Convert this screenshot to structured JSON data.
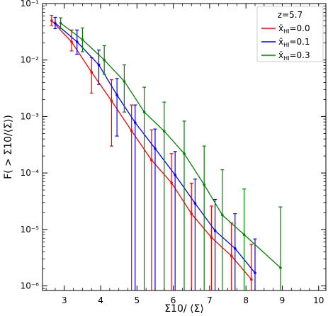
{
  "chart_data": {
    "type": "line",
    "xlabel": "Σ10/ ⟨Σ⟩",
    "ylabel": "F( > Σ10/⟨Σ⟩)",
    "xlim": [
      2.4,
      10.2
    ],
    "ylim": [
      8.3e-07,
      0.1
    ],
    "yscale": "log",
    "xticks": [
      3,
      4,
      5,
      6,
      7,
      8,
      9,
      10
    ],
    "ytick_labels": [
      "10⁻¹",
      "10⁻²",
      "10⁻³",
      "10⁻⁴",
      "10⁻⁵",
      "10⁻⁶"
    ],
    "legend": {
      "title": "z=5.7",
      "position": "top-right"
    },
    "series": [
      {
        "name": "x̄HI=0.0",
        "label_base": "x̄",
        "label_sub": "HI",
        "label_value": "=0.0",
        "color": "#ff0000",
        "x": [
          2.65,
          3.2,
          3.75,
          4.3,
          4.85,
          5.4,
          5.95,
          6.5,
          7.05,
          7.6,
          8.15
        ],
        "y": [
          0.05,
          0.021,
          0.0061,
          0.0019,
          0.00056,
          0.00017,
          6.7e-05,
          1.9e-05,
          7.2e-06,
          3.4e-06,
          1.3e-06
        ],
        "err_low": [
          0.041,
          0.0145,
          0.0026,
          0.0003,
          8.3e-07,
          8.3e-07,
          8.3e-07,
          8.3e-07,
          8.3e-07,
          8.3e-07,
          8.3e-07
        ],
        "err_high": [
          0.062,
          0.034,
          0.011,
          0.0045,
          0.0016,
          0.00058,
          0.00022,
          6.6e-05,
          2.6e-05,
          1.3e-05,
          5.5e-06
        ]
      },
      {
        "name": "x̄HI=0.1",
        "label_base": "x̄",
        "label_sub": "HI",
        "label_value": "=0.1",
        "color": "#0000ff",
        "x": [
          2.75,
          3.35,
          3.95,
          4.45,
          4.95,
          5.5,
          6.05,
          6.6,
          7.15,
          7.7,
          8.25
        ],
        "y": [
          0.045,
          0.021,
          0.0082,
          0.0024,
          0.00078,
          0.00027,
          9.2e-05,
          2.9e-05,
          9.5e-06,
          4.6e-06,
          1.7e-06
        ],
        "err_low": [
          0.036,
          0.0127,
          0.0037,
          0.00045,
          8.3e-07,
          8.3e-07,
          8.3e-07,
          8.3e-07,
          8.3e-07,
          8.3e-07,
          8.3e-07
        ],
        "err_high": [
          0.057,
          0.034,
          0.015,
          0.0047,
          0.0016,
          0.0006,
          0.00024,
          7.8e-05,
          3.4e-05,
          1.9e-05,
          6.8e-06
        ]
      },
      {
        "name": "x̄HI=0.3",
        "label_base": "x̄",
        "label_sub": "HI",
        "label_value": "=0.3",
        "color": "#008000",
        "x": [
          2.9,
          3.5,
          4.1,
          4.65,
          5.2,
          5.75,
          6.3,
          6.85,
          7.35,
          7.95,
          8.95
        ],
        "y": [
          0.045,
          0.023,
          0.01,
          0.0042,
          0.0012,
          0.00055,
          0.00022,
          6.2e-05,
          1.8e-05,
          8.1e-06,
          2.1e-06
        ],
        "err_low": [
          0.036,
          0.014,
          0.0056,
          0.0012,
          8.3e-07,
          8.3e-07,
          8.3e-07,
          8.3e-07,
          8.3e-07,
          8.3e-07,
          8.3e-07
        ],
        "err_high": [
          0.056,
          0.037,
          0.018,
          0.0082,
          0.0033,
          0.0018,
          0.00083,
          0.0003,
          0.000114,
          5.2e-05,
          2.5e-05
        ]
      }
    ]
  }
}
